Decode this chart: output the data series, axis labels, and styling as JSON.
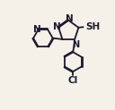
{
  "background_color": "#f5f0e8",
  "bond_color": "#1a1a2e",
  "atom_color": "#1a1a2e",
  "line_width": 1.3,
  "font_size": 7.5,
  "figsize": [
    1.28,
    1.23
  ],
  "dpi": 100,
  "xlim": [
    0,
    10
  ],
  "ylim": [
    0,
    10
  ]
}
